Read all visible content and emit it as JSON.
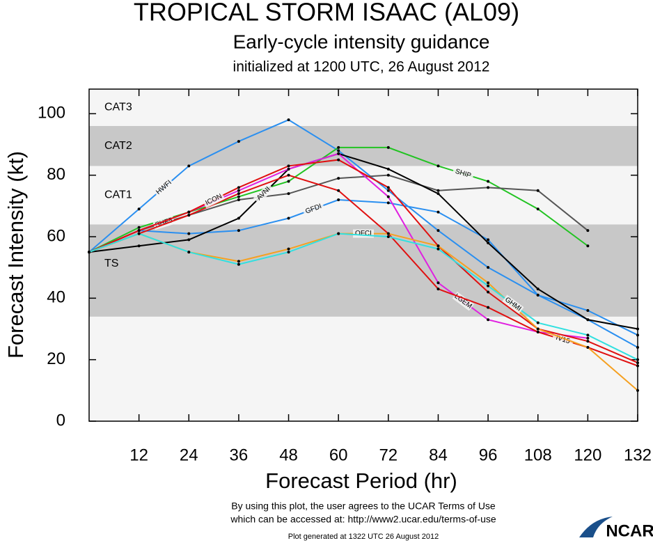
{
  "chart_data": {
    "type": "line",
    "title": "TROPICAL STORM ISAAC (AL09)",
    "subtitle": "Early-cycle intensity guidance",
    "initialized": "initialized at 1200 UTC, 26 August 2012",
    "x_label": "Forecast Period (hr)",
    "y_label": "Forecast Intensity (kt)",
    "footer": [
      "By using this plot, the user agrees to the UCAR Terms of Use",
      "which can be accessed at: http://www2.ucar.edu/terms-of-use",
      "Plot generated at 1322 UTC   26 August 2012"
    ],
    "logo": "NCAR",
    "xlim": [
      0,
      132
    ],
    "ylim": [
      0,
      108
    ],
    "xticks": [
      12,
      24,
      36,
      48,
      60,
      72,
      84,
      96,
      108,
      120,
      132
    ],
    "yticks": [
      0,
      20,
      40,
      60,
      80,
      100
    ],
    "bands": [
      {
        "label": "TS",
        "from": 34,
        "to": 64,
        "color": "#c8c8c8"
      },
      {
        "label": "CAT1",
        "from": 64,
        "to": 83,
        "color": "#f5f5f5"
      },
      {
        "label": "CAT2",
        "from": 83,
        "to": 96,
        "color": "#c8c8c8"
      },
      {
        "label": "CAT3",
        "from": 96,
        "to": 108,
        "color": "#f5f5f5"
      }
    ],
    "x": [
      0,
      12,
      24,
      36,
      48,
      60,
      72,
      84,
      96,
      108,
      120,
      132
    ],
    "series": [
      {
        "name": "HWFI",
        "color": "#2a8ff0",
        "values": [
          55,
          69,
          83,
          91,
          98,
          88,
          75,
          62,
          50,
          41,
          33,
          24
        ]
      },
      {
        "name": "GFDI",
        "color": "#2a8ff0",
        "values": [
          55,
          62,
          61,
          62,
          66,
          72,
          71,
          68,
          59,
          41,
          36,
          28
        ]
      },
      {
        "name": "SHIP",
        "color": "#22c322",
        "values": [
          55,
          63,
          68,
          73,
          78,
          89,
          89,
          83,
          78,
          69,
          57,
          null
        ]
      },
      {
        "name": "SHF5",
        "color": "#555555",
        "values": [
          55,
          62,
          67,
          72,
          74,
          79,
          80,
          75,
          76,
          75,
          62,
          null
        ]
      },
      {
        "name": "AVNI",
        "color": "#000000",
        "values": [
          55,
          57,
          59,
          66,
          82,
          87,
          82,
          74,
          58,
          43,
          33,
          30
        ]
      },
      {
        "name": "LGEM",
        "color": "#e020e0",
        "values": [
          55,
          62,
          68,
          75,
          82,
          87,
          73,
          45,
          33,
          29,
          27,
          null
        ]
      },
      {
        "name": "IV15",
        "color": "#e01010",
        "values": [
          55,
          61,
          67,
          74,
          80,
          75,
          61,
          43,
          37,
          29,
          24,
          18
        ]
      },
      {
        "name": "ICON",
        "color": "#e01010",
        "values": [
          55,
          62,
          68,
          76,
          83,
          85,
          76,
          57,
          42,
          30,
          26,
          19
        ]
      },
      {
        "name": "OFCI",
        "color": "#f5a020",
        "values": [
          55,
          61,
          55,
          52,
          56,
          61,
          61,
          57,
          45,
          30,
          24,
          10
        ]
      },
      {
        "name": "GHMI",
        "color": "#30e0e0",
        "values": [
          55,
          61,
          55,
          51,
          55,
          61,
          60,
          56,
          44,
          32,
          28,
          20
        ]
      }
    ]
  }
}
